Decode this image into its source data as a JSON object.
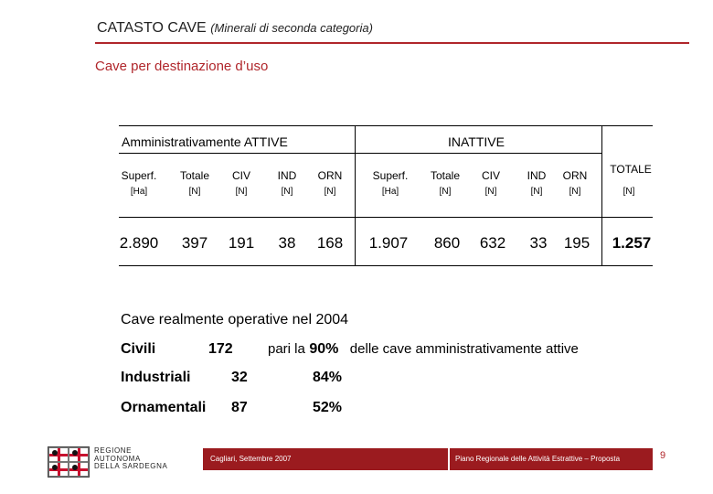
{
  "header": {
    "title": "CATASTO CAVE",
    "subtitle": "(Minerali di seconda categoria)",
    "section_title": "Cave per destinazione d’uso"
  },
  "table": {
    "group_active": "Amministrativamente ATTIVE",
    "group_inactive": "INATTIVE",
    "total_label": "TOTALE",
    "active": {
      "columns": [
        {
          "label": "Superf.",
          "unit": "[Ha]",
          "value": "2.890"
        },
        {
          "label": "Totale",
          "unit": "[N]",
          "value": "397"
        },
        {
          "label": "CIV",
          "unit": "[N]",
          "value": "191"
        },
        {
          "label": "IND",
          "unit": "[N]",
          "value": "38"
        },
        {
          "label": "ORN",
          "unit": "[N]",
          "value": "168"
        }
      ]
    },
    "inactive": {
      "columns": [
        {
          "label": "Superf.",
          "unit": "[Ha]",
          "value": "1.907"
        },
        {
          "label": "Totale",
          "unit": "[N]",
          "value": "860"
        },
        {
          "label": "CIV",
          "unit": "[N]",
          "value": "632"
        },
        {
          "label": "IND",
          "unit": "[N]",
          "value": "33"
        },
        {
          "label": "ORN",
          "unit": "[N]",
          "value": "195"
        }
      ]
    },
    "total": {
      "unit": "[N]",
      "value": "1.257"
    }
  },
  "operative": {
    "title": "Cave realmente operative nel 2004",
    "rows": [
      {
        "label": "Civili",
        "count": "172",
        "pct": "90%"
      },
      {
        "label": "Industriali",
        "count": "32",
        "pct": "84%"
      },
      {
        "label": "Ornamentali",
        "count": "87",
        "pct": "52%"
      }
    ],
    "prefix": "pari la",
    "suffix": "delle cave amministrativamente attive"
  },
  "footer": {
    "region_line1": "REGIONE",
    "region_line2": "AUTONOMA",
    "region_line3": "DELLA SARDEGNA",
    "date": "Cagliari, Settembre 2007",
    "plan": "Piano Regionale delle Attività Estrattive – Proposta",
    "page": "9"
  },
  "colors": {
    "accent_red": "#b0262b",
    "footer_bar": "#9b1b1f"
  }
}
